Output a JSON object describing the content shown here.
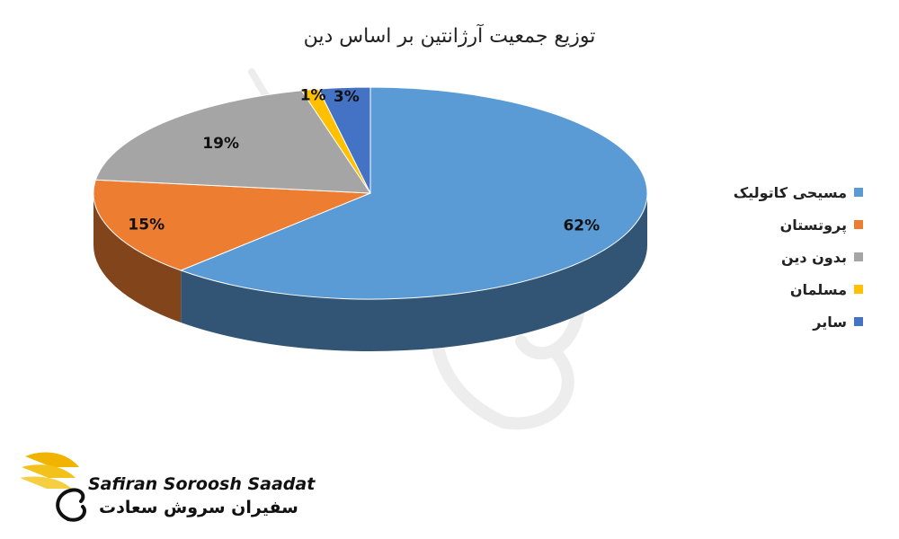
{
  "chart_data": {
    "type": "pie",
    "title": "توزیع جمعیت آرژانتین بر اساس دین",
    "slices": [
      {
        "label": "مسیحی کاتولیک",
        "value": 62,
        "display": "62%",
        "color": "#5b9bd5"
      },
      {
        "label": "پروتستان",
        "value": 15,
        "display": "15%",
        "color": "#ed7d31"
      },
      {
        "label": "بدون دین",
        "value": 19,
        "display": "19%",
        "color": "#a5a5a5"
      },
      {
        "label": "مسلمان",
        "value": 1,
        "display": "1%",
        "color": "#ffc000"
      },
      {
        "label": "سایر",
        "value": 3,
        "display": "3%",
        "color": "#4472c4"
      }
    ],
    "style": "3d",
    "legend_position": "right"
  },
  "logo": {
    "text_en": "Safiran Soroosh Saadat",
    "text_fa": "سفیران سروش سعادت",
    "icon": "swan-wing-logo-icon"
  },
  "watermark": {
    "icon": "swan-watermark-icon"
  }
}
